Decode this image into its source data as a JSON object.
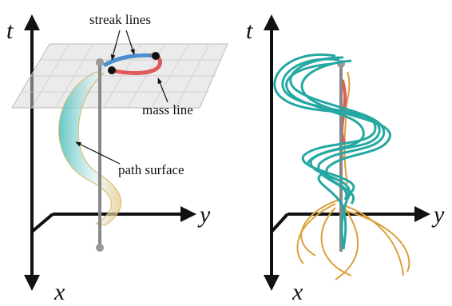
{
  "panels": [
    {
      "axes": {
        "t": "t",
        "y": "y",
        "x": "x"
      },
      "labels": {
        "streak": "streak lines",
        "mass": "mass line",
        "path": "path surface"
      }
    },
    {
      "axes": {
        "t": "t",
        "y": "y",
        "x": "x"
      }
    }
  ]
}
